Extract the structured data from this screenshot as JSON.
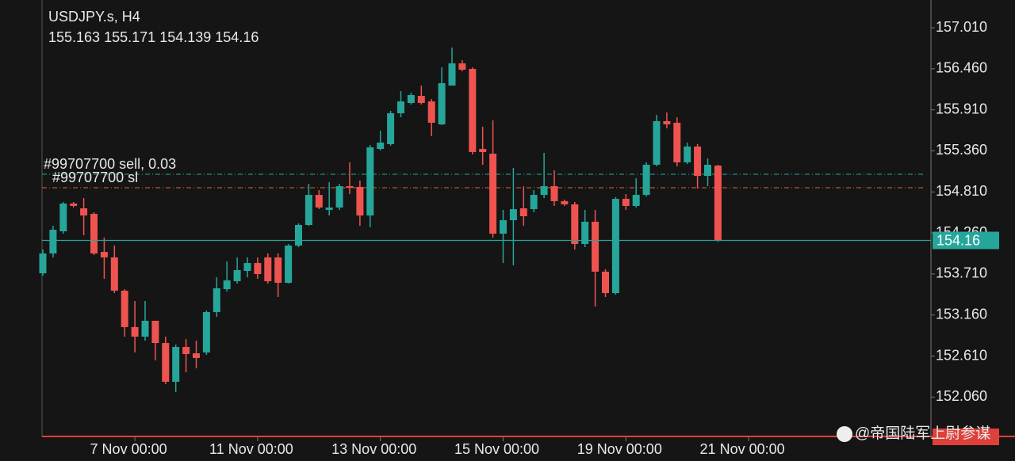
{
  "chart_data": {
    "type": "candlestick",
    "title": "USDJPY.s, H4",
    "watermark": "@帝国陆军上尉参谋",
    "up_color": "#26a69a",
    "down_color": "#ef5350",
    "ylim": [
      151.522,
      157.382
    ],
    "yticks": [
      {
        "value": 157.01,
        "label": "157.010"
      },
      {
        "value": 156.46,
        "label": "156.460"
      },
      {
        "value": 155.91,
        "label": "155.910"
      },
      {
        "value": 155.36,
        "label": "155.360"
      },
      {
        "value": 154.81,
        "label": "154.810"
      },
      {
        "value": 154.26,
        "label": "154.260"
      },
      {
        "value": 153.71,
        "label": "153.710"
      },
      {
        "value": 153.16,
        "label": "153.160"
      },
      {
        "value": 152.61,
        "label": "152.610"
      },
      {
        "value": 152.06,
        "label": "152.060"
      }
    ],
    "xticks": [
      {
        "value": 9,
        "label": "7 Nov 00:00"
      },
      {
        "value": 21,
        "label": "11 Nov 00:00"
      },
      {
        "value": 33,
        "label": "13 Nov 00:00"
      },
      {
        "value": 45,
        "label": "15 Nov 00:00"
      },
      {
        "value": 57,
        "label": "19 Nov 00:00"
      },
      {
        "value": 69,
        "label": "21 Nov 00:00"
      }
    ],
    "lines": [
      {
        "label": "#99707700 sell, 0.03",
        "value": 155.046,
        "color": "#26a69a"
      },
      {
        "label": "#99707700 sl",
        "value": 154.866,
        "color": "#e0622c"
      }
    ],
    "ohlc": [
      [
        153.719,
        154.038,
        153.688,
        153.985
      ],
      [
        153.985,
        154.356,
        153.932,
        154.303
      ],
      [
        154.282,
        154.675,
        154.25,
        154.654
      ],
      [
        154.654,
        154.675,
        154.601,
        154.622
      ],
      [
        154.59,
        154.728,
        154.229,
        154.494
      ],
      [
        154.516,
        154.537,
        153.964,
        153.985
      ],
      [
        154.006,
        154.197,
        153.645,
        153.932
      ],
      [
        153.932,
        154.091,
        153.454,
        153.486
      ],
      [
        153.486,
        153.507,
        152.87,
        152.998
      ],
      [
        152.998,
        153.348,
        152.658,
        152.87
      ],
      [
        152.87,
        153.348,
        152.817,
        153.083
      ],
      [
        153.083,
        153.083,
        152.552,
        152.785
      ],
      [
        152.785,
        152.87,
        152.233,
        152.265
      ],
      [
        152.265,
        152.764,
        152.127,
        152.732
      ],
      [
        152.732,
        152.838,
        152.392,
        152.637
      ],
      [
        152.647,
        152.817,
        152.446,
        152.584
      ],
      [
        152.658,
        153.221,
        152.626,
        153.199
      ],
      [
        153.199,
        153.666,
        153.136,
        153.518
      ],
      [
        153.507,
        153.879,
        153.475,
        153.624
      ],
      [
        153.613,
        153.932,
        153.581,
        153.762
      ],
      [
        153.751,
        153.932,
        153.666,
        153.857
      ],
      [
        153.857,
        153.932,
        153.645,
        153.709
      ],
      [
        153.932,
        153.985,
        153.581,
        153.613
      ],
      [
        153.932,
        153.985,
        153.401,
        153.592
      ],
      [
        153.592,
        154.112,
        153.581,
        154.091
      ],
      [
        154.091,
        154.388,
        154.07,
        154.367
      ],
      [
        154.367,
        154.919,
        154.356,
        154.77
      ],
      [
        154.77,
        154.834,
        154.579,
        154.601
      ],
      [
        154.569,
        154.94,
        154.494,
        154.601
      ],
      [
        154.601,
        154.919,
        154.569,
        154.887
      ],
      [
        154.887,
        155.206,
        154.781,
        154.866
      ],
      [
        154.877,
        154.962,
        154.356,
        154.494
      ],
      [
        154.494,
        155.439,
        154.335,
        155.407
      ],
      [
        155.386,
        155.63,
        155.365,
        155.471
      ],
      [
        155.45,
        155.896,
        155.429,
        155.864
      ],
      [
        155.864,
        156.161,
        155.811,
        156.023
      ],
      [
        156.002,
        156.14,
        155.981,
        156.108
      ],
      [
        156.097,
        156.235,
        155.981,
        156.002
      ],
      [
        156.023,
        156.055,
        155.556,
        155.737
      ],
      [
        155.715,
        156.48,
        155.705,
        156.267
      ],
      [
        156.235,
        156.745,
        156.235,
        156.533
      ],
      [
        156.533,
        156.575,
        156.427,
        156.448
      ],
      [
        156.458,
        156.48,
        155.312,
        155.344
      ],
      [
        155.386,
        155.683,
        155.174,
        155.344
      ],
      [
        155.322,
        155.768,
        154.197,
        154.25
      ],
      [
        154.25,
        154.569,
        153.857,
        154.431
      ],
      [
        154.431,
        155.131,
        153.826,
        154.579
      ],
      [
        154.59,
        154.887,
        154.356,
        154.484
      ],
      [
        154.579,
        154.834,
        154.537,
        154.77
      ],
      [
        154.77,
        155.333,
        154.728,
        154.887
      ],
      [
        154.887,
        155.1,
        154.622,
        154.686
      ],
      [
        154.686,
        154.707,
        154.622,
        154.643
      ],
      [
        154.643,
        154.675,
        154.038,
        154.112
      ],
      [
        154.112,
        154.569,
        154.07,
        154.41
      ],
      [
        154.41,
        154.569,
        153.274,
        153.741
      ],
      [
        153.741,
        153.773,
        153.401,
        153.454
      ],
      [
        153.454,
        154.739,
        153.433,
        154.717
      ],
      [
        154.717,
        154.781,
        154.569,
        154.622
      ],
      [
        154.622,
        154.993,
        154.601,
        154.77
      ],
      [
        154.77,
        155.206,
        154.749,
        155.174
      ],
      [
        155.174,
        155.843,
        155.153,
        155.758
      ],
      [
        155.758,
        155.875,
        155.662,
        155.715
      ],
      [
        155.737,
        155.811,
        155.153,
        155.206
      ],
      [
        155.206,
        155.471,
        155.184,
        155.418
      ],
      [
        155.418,
        155.45,
        154.855,
        155.025
      ],
      [
        155.025,
        155.259,
        154.887,
        155.174
      ],
      [
        155.163,
        155.171,
        154.139,
        154.16
      ]
    ]
  }
}
